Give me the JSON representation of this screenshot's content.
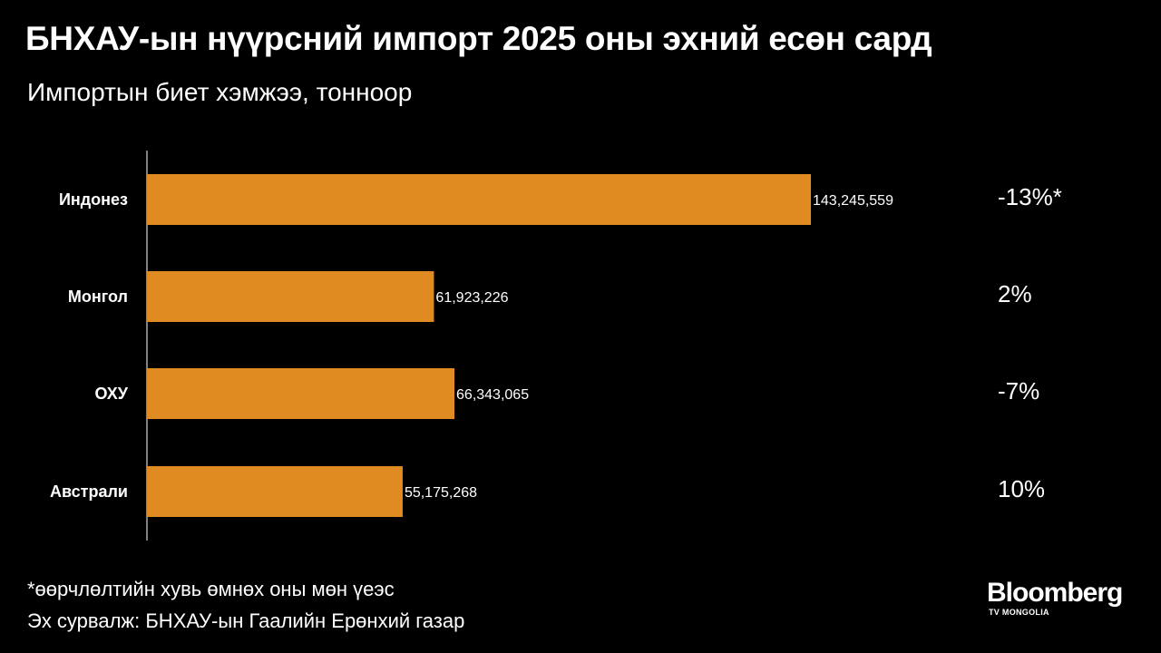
{
  "header": {
    "title": "БНХАУ-ын нүүрсний импорт 2025 оны эхний есөн сард",
    "subtitle": "Импортын биет хэмжээ, тонноор"
  },
  "chart_data": {
    "type": "bar",
    "orientation": "horizontal",
    "categories": [
      "Индонез",
      "Монгол",
      "ОХУ",
      "Австрали"
    ],
    "values": [
      143245559,
      61923226,
      66343065,
      55175268
    ],
    "value_labels": [
      "143,245,559",
      "61,923,226",
      "66,343,065",
      "55,175,268"
    ],
    "change_labels": [
      "-13%*",
      "2%",
      "-7%",
      "10%"
    ],
    "bar_color": "#E08A22",
    "grid": false,
    "legend": "none"
  },
  "footer": {
    "footnote": "*өөрчлөлтийн хувь өмнөх оны мөн үеэс",
    "source": "Эх сурвалж: БНХАУ-ын Гаалийн Ерөнхий газар"
  },
  "logo": {
    "main": "Bloomberg",
    "sub": "TV MONGOLIA"
  }
}
